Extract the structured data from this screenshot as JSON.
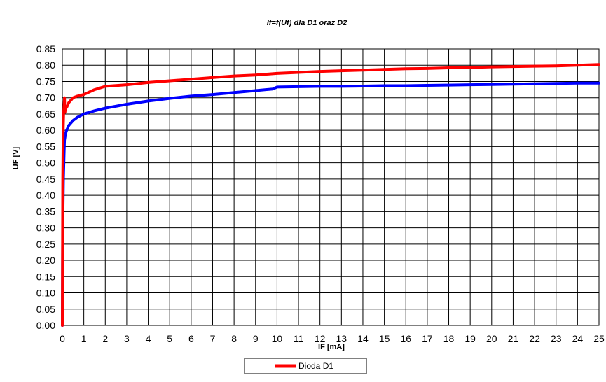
{
  "chart_data": {
    "type": "line",
    "title": "If=f(Uf) dla D1 oraz D2",
    "xlabel": "IF [mA]",
    "ylabel": "UF [V]",
    "xlim": [
      0,
      25
    ],
    "ylim": [
      0,
      0.85
    ],
    "x_ticks": [
      0,
      1,
      2,
      3,
      4,
      5,
      6,
      7,
      8,
      9,
      10,
      11,
      12,
      13,
      14,
      15,
      16,
      17,
      18,
      19,
      20,
      21,
      22,
      23,
      24,
      25
    ],
    "y_ticks": [
      "0.00",
      "0.05",
      "0.10",
      "0.15",
      "0.20",
      "0.25",
      "0.30",
      "0.35",
      "0.40",
      "0.45",
      "0.50",
      "0.55",
      "0.60",
      "0.65",
      "0.70",
      "0.75",
      "0.80",
      "0.85"
    ],
    "grid": true,
    "legend_position": "bottom",
    "series": [
      {
        "name": "Dioda D1",
        "color": "#ff0000",
        "x": [
          0,
          0.02,
          0.04,
          0.06,
          0.08,
          0.1,
          0.12,
          0.15,
          0.2,
          0.3,
          0.5,
          0.7,
          1,
          1.5,
          2,
          3,
          4,
          5,
          6,
          7,
          8,
          9,
          10,
          11,
          12,
          13,
          14,
          15,
          16,
          17,
          18,
          19,
          20,
          21,
          22,
          23,
          24,
          25
        ],
        "y": [
          0,
          0.45,
          0.6,
          0.65,
          0.68,
          0.7,
          0.655,
          0.67,
          0.67,
          0.685,
          0.7,
          0.705,
          0.71,
          0.725,
          0.735,
          0.74,
          0.747,
          0.752,
          0.757,
          0.762,
          0.767,
          0.77,
          0.775,
          0.778,
          0.781,
          0.783,
          0.785,
          0.787,
          0.789,
          0.79,
          0.792,
          0.793,
          0.795,
          0.796,
          0.797,
          0.798,
          0.8,
          0.802
        ]
      },
      {
        "color": "#0000ff",
        "x": [
          0,
          0.02,
          0.05,
          0.08,
          0.1,
          0.15,
          0.2,
          0.3,
          0.5,
          0.7,
          1,
          1.5,
          2,
          3,
          4,
          5,
          6,
          7,
          8,
          9,
          9.8,
          10,
          11,
          12,
          13,
          14,
          15,
          16,
          17,
          18,
          19,
          20,
          21,
          22,
          23,
          24,
          25
        ],
        "y": [
          0,
          0.3,
          0.45,
          0.53,
          0.57,
          0.59,
          0.6,
          0.615,
          0.63,
          0.64,
          0.65,
          0.66,
          0.668,
          0.68,
          0.69,
          0.698,
          0.705,
          0.71,
          0.716,
          0.722,
          0.727,
          0.733,
          0.734,
          0.735,
          0.735,
          0.736,
          0.737,
          0.737,
          0.738,
          0.739,
          0.74,
          0.741,
          0.742,
          0.743,
          0.744,
          0.745,
          0.745
        ]
      }
    ]
  }
}
